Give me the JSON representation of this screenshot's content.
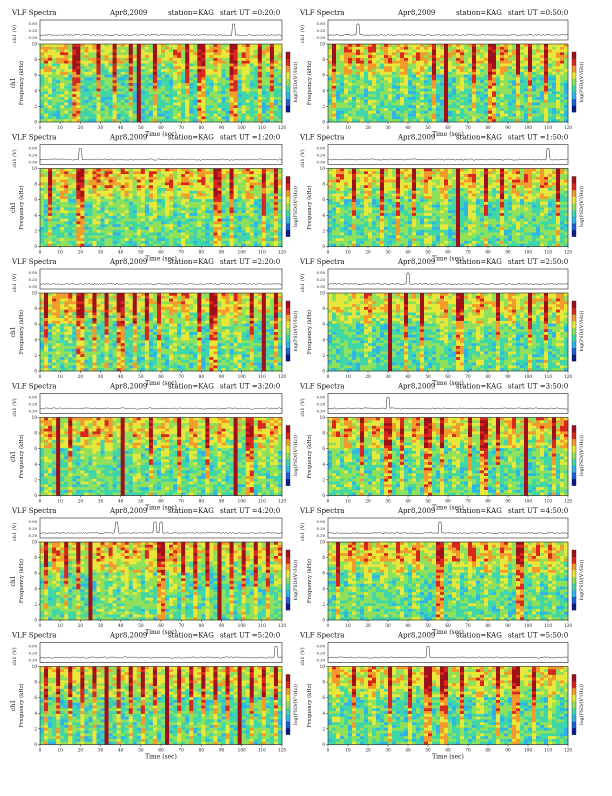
{
  "figure": {
    "title_prefix": "VLF Spectra",
    "date": "Apr8,2009",
    "station": "station=KAG",
    "start_prefix": "start UT ="
  },
  "colors": {
    "scale": [
      "#0a1a8c",
      "#1e5fd6",
      "#2fb4e8",
      "#3fd6a8",
      "#8fe05a",
      "#e8e83a",
      "#f29a2a",
      "#d8281e",
      "#a0101a"
    ],
    "line": "#222222"
  },
  "chart_data": [
    {
      "type": "heatmap",
      "start_ut": "0:20:0",
      "panel_ylabel": "ch1",
      "tschart_ylabel": "ch1 (V)",
      "freq_ylabel": "Frequency (kHz)",
      "xlabel": "Time (sec)",
      "colorbar_label": "log(PSD/(V²/Hz))",
      "xlim": [
        0,
        120
      ],
      "xticks": [
        0,
        10,
        20,
        30,
        40,
        50,
        60,
        70,
        80,
        90,
        100,
        110,
        120
      ],
      "ylim": [
        0,
        10
      ],
      "yticks": [
        0,
        2,
        4,
        6,
        8,
        10
      ],
      "ts_ticks": [
        "0.00",
        "0.20",
        "0.30"
      ],
      "bursts": [
        4,
        12,
        18,
        29,
        37,
        45,
        49,
        57,
        68,
        73,
        80,
        88,
        96,
        102,
        109,
        115
      ],
      "strong_bursts": [
        18,
        49,
        80,
        96
      ],
      "ts_spikes": [
        96
      ]
    },
    {
      "type": "heatmap",
      "start_ut": "0:50:0",
      "panel_ylabel": "",
      "tschart_ylabel": "ch1 (V)",
      "freq_ylabel": "Frequency (kHz)",
      "xlabel": "Time (sec)",
      "colorbar_label": "log(PSD/(V²/Hz))",
      "xlim": [
        0,
        120
      ],
      "xticks": [
        0,
        10,
        20,
        30,
        40,
        50,
        60,
        70,
        80,
        90,
        100,
        110,
        120
      ],
      "ylim": [
        0,
        10
      ],
      "yticks": [
        0,
        2,
        4,
        6,
        8,
        10
      ],
      "ts_ticks": [
        "0.00",
        "0.20",
        "0.30"
      ],
      "bursts": [
        3,
        10,
        16,
        22,
        30,
        38,
        46,
        53,
        59,
        66,
        73,
        82,
        88,
        95,
        101,
        109,
        116
      ],
      "strong_bursts": [
        59,
        82
      ],
      "ts_spikes": [
        15
      ]
    },
    {
      "type": "heatmap",
      "start_ut": "1:20:0",
      "panel_ylabel": "ch1",
      "tschart_ylabel": "ch1 (V)",
      "freq_ylabel": "Frequency (kHz)",
      "xlabel": "Time (sec)",
      "colorbar_label": "log(PSD/(V²/Hz))",
      "xlim": [
        0,
        120
      ],
      "xticks": [
        0,
        10,
        20,
        30,
        40,
        50,
        60,
        70,
        80,
        90,
        100,
        110,
        120
      ],
      "ylim": [
        0,
        10
      ],
      "yticks": [
        0,
        2,
        4,
        6,
        8,
        10
      ],
      "ts_ticks": [
        "0.00",
        "0.20",
        "0.30"
      ],
      "bursts": [
        5,
        12,
        20,
        28,
        34,
        42,
        50,
        56,
        64,
        72,
        80,
        88,
        95,
        104,
        111,
        117
      ],
      "strong_bursts": [
        20,
        88
      ],
      "ts_spikes": [
        20
      ]
    },
    {
      "type": "heatmap",
      "start_ut": "1:50:0",
      "panel_ylabel": "",
      "tschart_ylabel": "ch1 (V)",
      "freq_ylabel": "Frequency (kHz)",
      "xlabel": "Time (sec)",
      "colorbar_label": "log(PSD/(V²/Hz))",
      "xlim": [
        0,
        120
      ],
      "xticks": [
        0,
        10,
        20,
        30,
        40,
        50,
        60,
        70,
        80,
        90,
        100,
        110,
        120
      ],
      "ylim": [
        0,
        10
      ],
      "yticks": [
        0,
        2,
        4,
        6,
        8,
        10
      ],
      "ts_ticks": [
        "0.00",
        "0.20",
        "0.30"
      ],
      "bursts": [
        6,
        13,
        20,
        27,
        35,
        43,
        50,
        58,
        65,
        72,
        79,
        87,
        94,
        100,
        108,
        115
      ],
      "strong_bursts": [
        65
      ],
      "ts_spikes": [
        110
      ]
    },
    {
      "type": "heatmap",
      "start_ut": "2:20:0",
      "panel_ylabel": "ch1",
      "tschart_ylabel": "ch1 (V)",
      "freq_ylabel": "Frequency (kHz)",
      "xlabel": "Time (sec)",
      "colorbar_label": "log(PSD/(V²/Hz))",
      "xlim": [
        0,
        120
      ],
      "xticks": [
        0,
        10,
        20,
        30,
        40,
        50,
        60,
        70,
        80,
        90,
        100,
        110,
        120
      ],
      "ylim": [
        0,
        10
      ],
      "yticks": [
        0,
        2,
        4,
        6,
        8,
        10
      ],
      "ts_ticks": [
        "0.00",
        "0.20",
        "0.30"
      ],
      "bursts": [
        3,
        8,
        14,
        20,
        27,
        33,
        40,
        47,
        53,
        59,
        66,
        72,
        79,
        86,
        92,
        98,
        105,
        111,
        117
      ],
      "strong_bursts": [
        20,
        40,
        86,
        111
      ],
      "ts_spikes": []
    },
    {
      "type": "heatmap",
      "start_ut": "2:50:0",
      "panel_ylabel": "",
      "tschart_ylabel": "ch1 (V)",
      "freq_ylabel": "Frequency (kHz)",
      "xlabel": "Time (sec)",
      "colorbar_label": "log(PSD/(V²/Hz))",
      "xlim": [
        0,
        120
      ],
      "xticks": [
        0,
        10,
        20,
        30,
        40,
        50,
        60,
        70,
        80,
        90,
        100,
        110,
        120
      ],
      "ylim": [
        0,
        10
      ],
      "yticks": [
        0,
        2,
        4,
        6,
        8,
        10
      ],
      "ts_ticks": [
        "0.00",
        "0.20",
        "0.30"
      ],
      "bursts": [
        20,
        31,
        39,
        47,
        58,
        66,
        76,
        85,
        92,
        101,
        109,
        116
      ],
      "strong_bursts": [
        31,
        66
      ],
      "ts_spikes": [
        40
      ]
    },
    {
      "type": "heatmap",
      "start_ut": "3:20:0",
      "panel_ylabel": "ch1",
      "tschart_ylabel": "ch1 (V)",
      "freq_ylabel": "Frequency (kHz)",
      "xlabel": "Time (sec)",
      "colorbar_label": "log(PSD/(V²/Hz))",
      "xlim": [
        0,
        120
      ],
      "xticks": [
        0,
        10,
        20,
        30,
        40,
        50,
        60,
        70,
        80,
        90,
        100,
        110,
        120
      ],
      "ylim": [
        0,
        10
      ],
      "yticks": [
        0,
        2,
        4,
        6,
        8,
        10
      ],
      "ts_ticks": [
        "0.00",
        "0.20",
        "0.30"
      ],
      "bursts": [
        4,
        9,
        15,
        22,
        28,
        34,
        41,
        48,
        55,
        62,
        69,
        76,
        83,
        90,
        97,
        104,
        110,
        116
      ],
      "strong_bursts": [
        9,
        41,
        97,
        104
      ],
      "ts_spikes": []
    },
    {
      "type": "heatmap",
      "start_ut": "3:50:0",
      "panel_ylabel": "",
      "tschart_ylabel": "ch1 (V)",
      "freq_ylabel": "Frequency (kHz)",
      "xlabel": "Time (sec)",
      "colorbar_label": "log(PSD/(V²/Hz))",
      "xlim": [
        0,
        120
      ],
      "xticks": [
        0,
        10,
        20,
        30,
        40,
        50,
        60,
        70,
        80,
        90,
        100,
        110,
        120
      ],
      "ylim": [
        0,
        10
      ],
      "yticks": [
        0,
        2,
        4,
        6,
        8,
        10
      ],
      "ts_ticks": [
        "0.00",
        "0.20",
        "0.30"
      ],
      "bursts": [
        4,
        10,
        17,
        24,
        30,
        37,
        44,
        50,
        57,
        64,
        71,
        78,
        85,
        92,
        99,
        106,
        113,
        118
      ],
      "strong_bursts": [
        30,
        50,
        78,
        99
      ],
      "ts_spikes": [
        30
      ]
    },
    {
      "type": "heatmap",
      "start_ut": "4:20:0",
      "panel_ylabel": "ch1",
      "tschart_ylabel": "ch1 (V)",
      "freq_ylabel": "Frequency (kHz)",
      "xlabel": "Time (sec)",
      "colorbar_label": "log(PSD/(V²/Hz))",
      "xlim": [
        0,
        120
      ],
      "xticks": [
        0,
        10,
        20,
        30,
        40,
        50,
        60,
        70,
        80,
        90,
        100,
        110,
        120
      ],
      "ylim": [
        0,
        10
      ],
      "yticks": [
        0,
        2,
        4,
        6,
        8,
        10
      ],
      "ts_ticks": [
        "0.00",
        "0.20",
        "0.30"
      ],
      "bursts": [
        3,
        8,
        13,
        19,
        25,
        30,
        36,
        42,
        48,
        54,
        60,
        66,
        71,
        77,
        83,
        89,
        95,
        101,
        107,
        113,
        118
      ],
      "strong_bursts": [
        25,
        60,
        89
      ],
      "ts_spikes": [
        38,
        57,
        60
      ]
    },
    {
      "type": "heatmap",
      "start_ut": "4:50:0",
      "panel_ylabel": "",
      "tschart_ylabel": "ch1 (V)",
      "freq_ylabel": "Frequency (kHz)",
      "xlabel": "Time (sec)",
      "colorbar_label": "log(PSD/(V²/Hz))",
      "xlim": [
        0,
        120
      ],
      "xticks": [
        0,
        10,
        20,
        30,
        40,
        50,
        60,
        70,
        80,
        90,
        100,
        110,
        120
      ],
      "ylim": [
        0,
        10
      ],
      "yticks": [
        0,
        2,
        4,
        6,
        8,
        10
      ],
      "ts_ticks": [
        "0.00",
        "0.20",
        "0.30"
      ],
      "bursts": [
        5,
        12,
        20,
        28,
        36,
        44,
        56,
        64,
        72,
        80,
        88,
        96,
        104,
        112
      ],
      "strong_bursts": [
        56,
        96
      ],
      "ts_spikes": [
        56
      ]
    },
    {
      "type": "heatmap",
      "start_ut": "5:20:0",
      "panel_ylabel": "ch1",
      "tschart_ylabel": "ch1 (V)",
      "freq_ylabel": "Frequency (kHz)",
      "xlabel": "Time (sec)",
      "colorbar_label": "log(PSD/(V²/Hz))",
      "xlim": [
        0,
        120
      ],
      "xticks": [
        0,
        10,
        20,
        30,
        40,
        50,
        60,
        70,
        80,
        90,
        100,
        110,
        120
      ],
      "ylim": [
        0,
        10
      ],
      "yticks": [
        0,
        2,
        4,
        6,
        8,
        10
      ],
      "ts_ticks": [
        "0.00",
        "0.20",
        "0.30"
      ],
      "bursts": [
        3,
        9,
        15,
        21,
        27,
        33,
        39,
        45,
        51,
        57,
        63,
        69,
        75,
        81,
        87,
        93,
        99,
        105,
        111,
        117
      ],
      "strong_bursts": [
        33,
        63,
        99
      ],
      "ts_spikes": [
        117
      ]
    },
    {
      "type": "heatmap",
      "start_ut": "5:50:0",
      "panel_ylabel": "",
      "tschart_ylabel": "ch1 (V)",
      "freq_ylabel": "Frequency (kHz)",
      "xlabel": "Time (sec)",
      "colorbar_label": "log(PSD/(V²/Hz))",
      "xlim": [
        0,
        120
      ],
      "xticks": [
        0,
        10,
        20,
        30,
        40,
        50,
        60,
        70,
        80,
        90,
        100,
        110,
        120
      ],
      "ylim": [
        0,
        10
      ],
      "yticks": [
        0,
        2,
        4,
        6,
        8,
        10
      ],
      "ts_ticks": [
        "0.00",
        "0.20",
        "0.30"
      ],
      "bursts": [
        4,
        13,
        22,
        31,
        41,
        50,
        58,
        67,
        76,
        85,
        94,
        103,
        112
      ],
      "strong_bursts": [
        50,
        58,
        94
      ],
      "ts_spikes": [
        50
      ]
    }
  ]
}
